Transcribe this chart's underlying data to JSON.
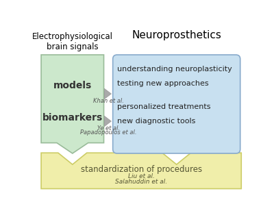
{
  "title_left": "Electrophysiological\nbrain signals",
  "title_right": "Neuroprosthetics",
  "left_labels": [
    "models",
    "biomarkers"
  ],
  "right_labels": [
    "understanding neuroplasticity",
    "testing new approaches",
    "personalized treatments",
    "new diagnostic tools"
  ],
  "arrow_label_top": "Khan et al.",
  "arrow_label_bot1": "Ye et al.",
  "arrow_label_bot2": "Papadopoulos et al.",
  "bottom_label": "standardization of procedures",
  "bottom_sub1": "Liu et al.",
  "bottom_sub2": "Salahuddin et al.",
  "color_left_box": "#cce8cc",
  "color_right_box": "#c8e0f0",
  "color_bottom_box": "#f0eeaa",
  "color_arrow": "#aaaaaa",
  "color_arrow_edge": "#999999",
  "bg_color": "#ffffff"
}
